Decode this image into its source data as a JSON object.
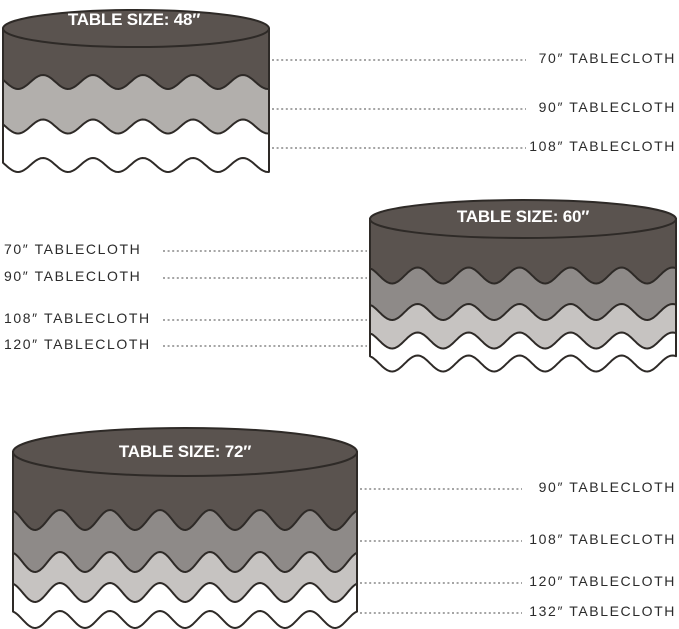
{
  "diagram": {
    "colors": {
      "background": "#ffffff",
      "outline": "#2e2a27",
      "dash": "#6f6f6f",
      "label_text": "#2b2b2b",
      "title_text": "#ffffff"
    },
    "tables": [
      {
        "title": "TABLE SIZE: 48″",
        "label_side": "right",
        "labels": [
          "70″ TABLECLOTH",
          "90″ TABLECLOTH",
          "108″ TABLECLOTH"
        ],
        "layer_colors": [
          "#5a534f",
          "#b2afac",
          "#ffffff"
        ]
      },
      {
        "title": "TABLE SIZE: 60″",
        "label_side": "left",
        "labels": [
          "70″ TABLECLOTH",
          "90″ TABLECLOTH",
          "108″ TABLECLOTH",
          "120″ TABLECLOTH"
        ],
        "layer_colors": [
          "#5a534f",
          "#8e8a88",
          "#c6c3c1",
          "#ffffff"
        ]
      },
      {
        "title": "TABLE SIZE: 72″",
        "label_side": "right",
        "labels": [
          "90″ TABLECLOTH",
          "108″ TABLECLOTH",
          "120″ TABLECLOTH",
          "132″ TABLECLOTH"
        ],
        "layer_colors": [
          "#5a534f",
          "#8e8a88",
          "#c6c3c1",
          "#ffffff"
        ]
      }
    ]
  }
}
